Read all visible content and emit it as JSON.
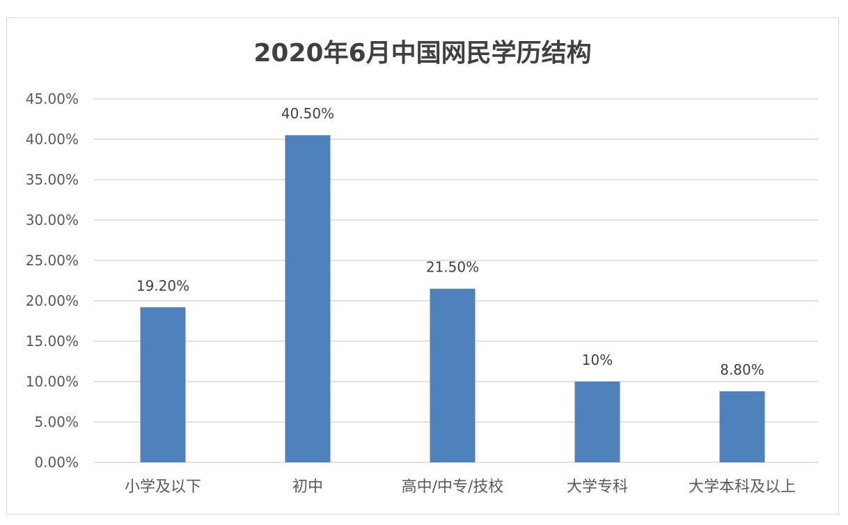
{
  "chart_data": {
    "type": "bar",
    "title": "2020年6月中国网民学历结构",
    "categories": [
      "小学及以下",
      "初中",
      "高中/中专/技校",
      "大学专科",
      "大学本科及以上"
    ],
    "values": [
      19.2,
      40.5,
      21.5,
      10,
      8.8
    ],
    "data_labels": [
      "19.20%",
      "40.50%",
      "21.50%",
      "10%",
      "8.80%"
    ],
    "yticks": [
      0,
      5,
      10,
      15,
      20,
      25,
      30,
      35,
      40,
      45
    ],
    "ytick_labels": [
      "0.00%",
      "5.00%",
      "10.00%",
      "15.00%",
      "20.00%",
      "25.00%",
      "30.00%",
      "35.00%",
      "40.00%",
      "45.00%"
    ],
    "ylim": [
      0,
      45
    ],
    "xlabel": "",
    "ylabel": "",
    "grid": true,
    "legend": "none",
    "bar_color": "#4f81bd",
    "grid_color": "#d9d9d9"
  }
}
